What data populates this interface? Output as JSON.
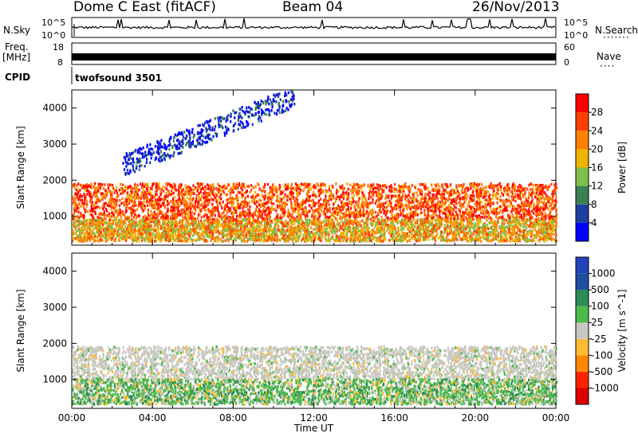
{
  "header": {
    "radar": "Dome C East (fitACF)",
    "beam": "Beam 04",
    "date": "26/Nov/2013"
  },
  "noise_panel": {
    "left_label": "N.Sky",
    "right_label": "N.Search",
    "ticks_left": [
      "10^5",
      "10^0"
    ],
    "ticks_right": [
      "10^5",
      "10^0"
    ]
  },
  "freq_panel": {
    "left_label_1": "Freq.",
    "left_label_2": "[MHz]",
    "right_label": "Nave",
    "ticks_left": [
      "18",
      "8"
    ],
    "ticks_right": [
      "60",
      "0"
    ]
  },
  "cpid_panel": {
    "label": "CPID",
    "value": "twofsound 3501"
  },
  "colors": {
    "power_scale": [
      "#0000ff",
      "#1f3f9f",
      "#3b7f55",
      "#7fbf4f",
      "#f0b400",
      "#ff7f00",
      "#ff3f00",
      "#ff0000"
    ],
    "velocity_scale": [
      "#2244bb",
      "#1f4fa0",
      "#2e8b57",
      "#4cbb4c",
      "#c8c8c0",
      "#ffbb33",
      "#ff8800",
      "#ff2200",
      "#dd0000"
    ]
  },
  "chart_data": [
    {
      "type": "heatmap",
      "title": "",
      "xlabel": "",
      "ylabel": "Slant Range [km]",
      "xlim": [
        "00:00",
        "00:00"
      ],
      "x_ticks": [
        "00:00",
        "04:00",
        "08:00",
        "12:00",
        "16:00",
        "20:00",
        "00:00"
      ],
      "ylim": [
        200,
        4500
      ],
      "y_ticks": [
        1000,
        2000,
        3000,
        4000
      ],
      "colorbar": {
        "label": "Power [dB]",
        "range": [
          0,
          32
        ],
        "ticks": [
          "4",
          "8",
          "12",
          "16",
          "20",
          "24",
          "28"
        ]
      },
      "features": [
        {
          "name": "main band",
          "range_km": [
            900,
            1900
          ],
          "time_h": [
            0,
            24
          ],
          "power_db": 28
        },
        {
          "name": "low band",
          "range_km": [
            300,
            900
          ],
          "time_h": [
            0,
            24
          ],
          "power_db": 22
        },
        {
          "name": "rising trace",
          "range_km": [
            2400,
            4300
          ],
          "time_h": [
            2.5,
            11
          ],
          "power_db": 6
        }
      ]
    },
    {
      "type": "heatmap",
      "title": "",
      "xlabel": "Time UT",
      "ylabel": "Slant Range [km]",
      "xlim": [
        "00:00",
        "00:00"
      ],
      "x_ticks": [
        "00:00",
        "04:00",
        "08:00",
        "12:00",
        "16:00",
        "20:00",
        "00:00"
      ],
      "ylim": [
        200,
        4500
      ],
      "y_ticks": [
        1000,
        2000,
        3000,
        4000
      ],
      "colorbar": {
        "label": "Velocity [m s^-1]",
        "range": [
          -1000,
          1000
        ],
        "ticks": [
          "1000",
          "500",
          "100",
          "25",
          "-25",
          "-100",
          "-500",
          "-1000"
        ]
      },
      "features": [
        {
          "name": "main band",
          "range_km": [
            1000,
            1900
          ],
          "time_h": [
            0,
            24
          ],
          "velocity": 0
        },
        {
          "name": "low band",
          "range_km": [
            300,
            1000
          ],
          "time_h": [
            0,
            24
          ],
          "velocity": 150
        }
      ]
    }
  ]
}
